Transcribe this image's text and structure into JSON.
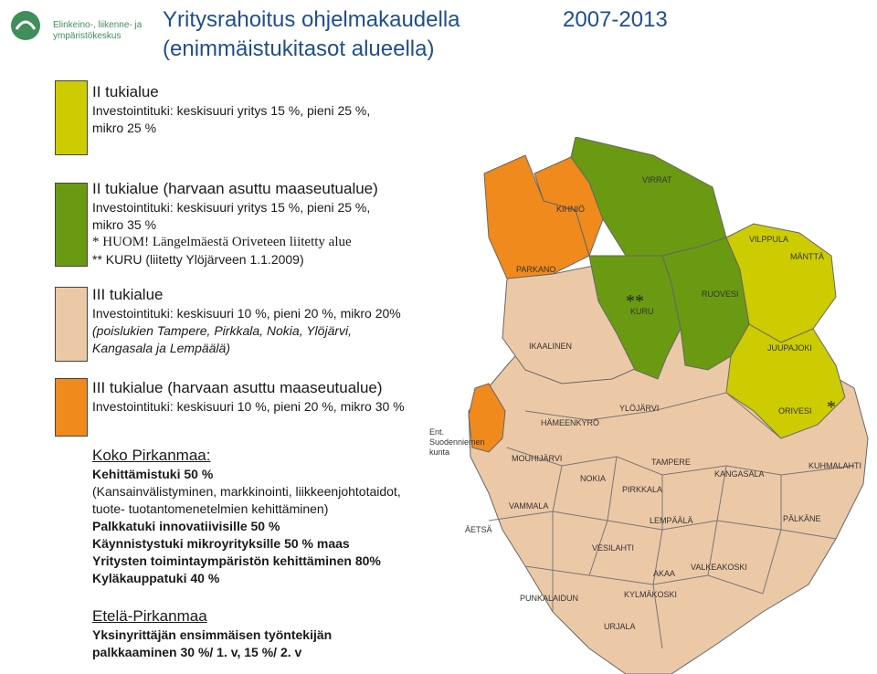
{
  "logo": {
    "text_line1": "Elinkeino-, liikenne- ja",
    "text_line2": "ympäristökeskus"
  },
  "title": {
    "line1": "Yritysrahoitus ohjelmakaudella",
    "years": "2007-2013",
    "line2": "(enimmäistukitasot alueella)"
  },
  "colors": {
    "ii_tukialue": "#cccc00",
    "ii_harvaan": "#6a9a12",
    "iii_tukialue": "#ecc9a6",
    "iii_harvaan": "#f08a1c",
    "title": "#1f4e8c"
  },
  "legend": [
    {
      "head": "II tukialue",
      "lines": [
        "Investointituki: keskisuuri yritys 15 %, pieni 25 %,",
        "mikro 25 %"
      ]
    },
    {
      "head": "II tukialue (harvaan asuttu maaseutualue)",
      "lines": [
        "Investointituki: keskisuuri yritys 15 %, pieni 25 %,",
        "mikro 35 %"
      ],
      "note1": "* HUOM! Längelmäestä Oriveteen liitetty alue",
      "note2": "** KURU (liitetty Ylöjärveen 1.1.2009)"
    },
    {
      "head": "III tukialue",
      "lines": [
        "Investointituki: keskisuuri 10 %, pieni 20 %, mikro 20%"
      ],
      "italic1": "(poislukien Tampere, Pirkkala, Nokia, Ylöjärvi,",
      "italic2": "Kangasala ja Lempäälä)"
    },
    {
      "head": "III tukialue (harvaan asuttu maaseutualue)",
      "lines": [
        "Investointituki: keskisuuri 10 %, pieni 20 %, mikro 30 %"
      ]
    }
  ],
  "koko": {
    "heading": "Koko Pirkanmaa:",
    "l1": "Kehittämistuki 50 %",
    "l2": "(Kansainvälistyminen, markkinointi, liikkeenjohtotaidot,",
    "l3": "tuote- tuotantomenetelmien kehittäminen)",
    "l4": "Palkkatuki innovatiivisille 50 %",
    "l5": "Käynnistystuki mikroyrityksille 50 % maas",
    "l6": "Yritysten toimintaympäristön kehittäminen 80%",
    "l7": "Kyläkauppatuki 40 %"
  },
  "etela": {
    "heading": "Etelä-Pirkanmaa",
    "l1": "Yksinyrittäjän ensimmäisen työntekijän",
    "l2": "palkkaaminen 30 %/ 1. v, 15 %/ 2. v"
  },
  "map": {
    "ent_note": {
      "l1": "Ent.",
      "l2": "Suodenniemen",
      "l3": "kunta"
    },
    "markers": {
      "kuru": "**",
      "orivesi": "*"
    },
    "labels": {
      "kihnio": "KIHNIÖ",
      "virrat": "VIRRAT",
      "parkano": "PARKANO",
      "vilppula": "VILPPULA",
      "mantta": "MÄNTTÄ",
      "kuru": "KURU",
      "ruovesi": "RUOVESI",
      "ikaalinen": "IKAALINEN",
      "juupajoki": "JUUPAJOKI",
      "ylojarvi": "YLÖJÄRVI",
      "orivesi": "ORIVESI",
      "hameenkyro": "HÄMEENKYRÖ",
      "mouhijarvi": "MOUHIJÄRVI",
      "tampere": "TAMPERE",
      "kuhmalahti": "KUHMALAHTI",
      "nokia": "NOKIA",
      "kangasala": "KANGASALA",
      "pirkkala": "PIRKKALA",
      "vammala": "VAMMALA",
      "aetsa": "ÄETSÄ",
      "lempaala": "LEMPÄÄLÄ",
      "palkane": "PÄLKÄNE",
      "vesilahti": "VESILAHTI",
      "akaa": "AKAA",
      "valkeakoski": "VALKEAKOSKI",
      "punkalaidun": "PUNKALAIDUN",
      "kylmakoski": "KYLMÄKOSKI",
      "urjala": "URJALA"
    }
  }
}
